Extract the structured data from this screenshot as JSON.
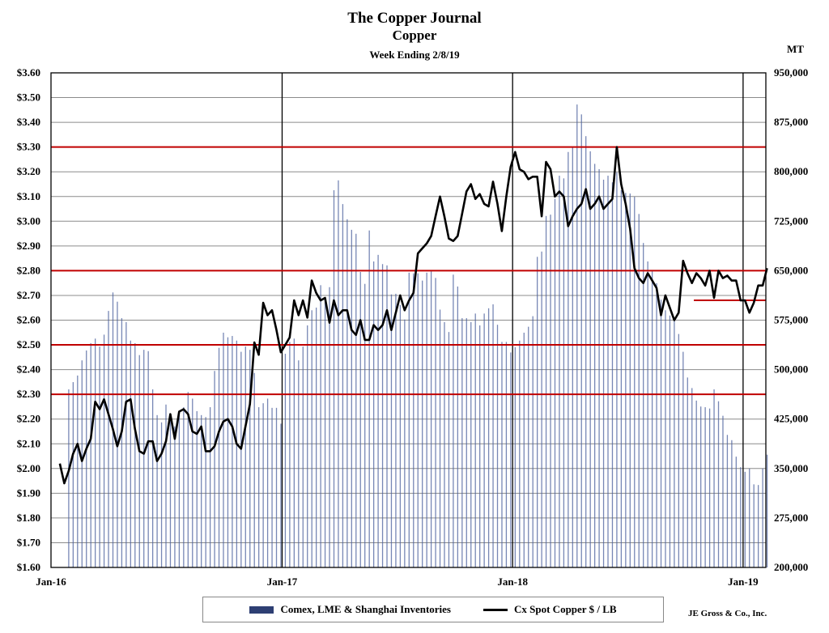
{
  "header": {
    "title": "The Copper Journal",
    "subtitle": "Copper",
    "week": "Week Ending 2/8/19",
    "right_unit": "MT"
  },
  "credit": "JE Gross & Co., Inc.",
  "legend": {
    "inventories": "Comex, LME & Shanghai Inventories",
    "price": "Cx Spot Copper $ / LB"
  },
  "colors": {
    "bars": "#4a5f9c",
    "line": "#000000",
    "reference_lines": "#c00000",
    "grid": "#8c8c8c"
  },
  "chart_data": {
    "type": "bar+line",
    "frequency": "weekly",
    "last_week": "2019-02-08",
    "x_ticks": [
      "Jan-16",
      "Jan-17",
      "Jan-18",
      "Jan-19"
    ],
    "x_tick_dates": [
      "2016-01-01",
      "2017-01-01",
      "2018-01-01",
      "2019-01-01"
    ],
    "y_left": {
      "min": 1.6,
      "max": 3.6,
      "step": 0.1,
      "ticks": [
        "$1.60",
        "$1.70",
        "$1.80",
        "$1.90",
        "$2.00",
        "$2.10",
        "$2.20",
        "$2.30",
        "$2.40",
        "$2.50",
        "$2.60",
        "$2.70",
        "$2.80",
        "$2.90",
        "$3.00",
        "$3.10",
        "$3.20",
        "$3.30",
        "$3.40",
        "$3.50",
        "$3.60"
      ]
    },
    "y_right": {
      "min": 200000,
      "max": 950000,
      "step": 75000,
      "ticks": [
        "200,000",
        "275,000",
        "350,000",
        "425,000",
        "500,000",
        "575,000",
        "650,000",
        "725,000",
        "800,000",
        "875,000",
        "950,000"
      ]
    },
    "grid": true,
    "reference_lines": [
      3.3,
      2.8,
      2.5,
      2.3
    ],
    "short_reference_line": {
      "value": 2.68,
      "from": "2018-10-15",
      "to": "2019-02-08"
    },
    "series": [
      {
        "name": "Comex, LME & Shanghai Inventories",
        "axis": "right",
        "type": "bar",
        "values": [
          470000,
          481000,
          491000,
          514000,
          529000,
          540000,
          547000,
          535000,
          553000,
          589000,
          617000,
          603000,
          578000,
          572000,
          544000,
          540000,
          522000,
          530000,
          528000,
          470000,
          431000,
          420000,
          447000,
          432000,
          414000,
          431000,
          443000,
          466000,
          456000,
          437000,
          431000,
          428000,
          443000,
          498000,
          533000,
          556000,
          549000,
          551000,
          544000,
          527000,
          535000,
          530000,
          495000,
          443000,
          449000,
          456000,
          442000,
          442000,
          418000,
          524000,
          542000,
          547000,
          514000,
          535000,
          567000,
          590000,
          594000,
          628000,
          610000,
          625000,
          772000,
          787000,
          751000,
          728000,
          712000,
          706000,
          648000,
          630000,
          711000,
          664000,
          674000,
          660000,
          658000,
          614000,
          615000,
          598000,
          576000,
          647000,
          646000,
          646000,
          635000,
          647000,
          649000,
          639000,
          591000,
          572000,
          557000,
          644000,
          626000,
          578000,
          578000,
          572000,
          585000,
          567000,
          585000,
          593000,
          599000,
          568000,
          542000,
          542000,
          526000,
          534000,
          544000,
          556000,
          565000,
          581000,
          671000,
          679000,
          733000,
          735000,
          759000,
          794000,
          790000,
          830000,
          837000,
          902000,
          887000,
          854000,
          831000,
          812000,
          804000,
          788000,
          794000,
          784000,
          799000,
          772000,
          768000,
          767000,
          762000,
          736000,
          692000,
          664000,
          649000,
          631000,
          606000,
          590000,
          582000,
          576000,
          554000,
          527000,
          488000,
          472000,
          453000,
          444000,
          443000,
          441000,
          470000,
          452000,
          430000,
          401000,
          393000,
          368000,
          352000,
          345000,
          350000,
          326000,
          325000,
          350000,
          371000
        ]
      },
      {
        "name": "Cx Spot Copper $ / LB",
        "axis": "left",
        "type": "line",
        "values": [
          2.02,
          1.94,
          1.99,
          2.06,
          2.1,
          2.03,
          2.08,
          2.12,
          2.27,
          2.24,
          2.28,
          2.22,
          2.16,
          2.09,
          2.15,
          2.27,
          2.28,
          2.16,
          2.07,
          2.06,
          2.11,
          2.11,
          2.03,
          2.06,
          2.11,
          2.22,
          2.12,
          2.23,
          2.24,
          2.22,
          2.15,
          2.14,
          2.17,
          2.07,
          2.07,
          2.09,
          2.15,
          2.19,
          2.2,
          2.17,
          2.1,
          2.08,
          2.17,
          2.26,
          2.51,
          2.46,
          2.67,
          2.62,
          2.64,
          2.56,
          2.47,
          2.5,
          2.53,
          2.68,
          2.62,
          2.68,
          2.61,
          2.76,
          2.71,
          2.68,
          2.69,
          2.59,
          2.68,
          2.62,
          2.64,
          2.64,
          2.56,
          2.54,
          2.6,
          2.52,
          2.52,
          2.58,
          2.56,
          2.58,
          2.64,
          2.56,
          2.63,
          2.7,
          2.64,
          2.68,
          2.71,
          2.87,
          2.89,
          2.91,
          2.94,
          3.02,
          3.1,
          3.02,
          2.93,
          2.92,
          2.94,
          3.03,
          3.12,
          3.15,
          3.09,
          3.11,
          3.07,
          3.06,
          3.16,
          3.07,
          2.96,
          3.1,
          3.22,
          3.28,
          3.21,
          3.2,
          3.17,
          3.18,
          3.18,
          3.02,
          3.24,
          3.21,
          3.1,
          3.12,
          3.1,
          2.98,
          3.02,
          3.05,
          3.07,
          3.13,
          3.05,
          3.07,
          3.1,
          3.05,
          3.07,
          3.09,
          3.3,
          3.15,
          3.07,
          2.97,
          2.81,
          2.77,
          2.75,
          2.79,
          2.76,
          2.73,
          2.62,
          2.7,
          2.65,
          2.6,
          2.63,
          2.84,
          2.79,
          2.75,
          2.79,
          2.77,
          2.74,
          2.8,
          2.69,
          2.8,
          2.77,
          2.78,
          2.76,
          2.76,
          2.68,
          2.68,
          2.63,
          2.67,
          2.74,
          2.74,
          2.81
        ]
      }
    ]
  }
}
